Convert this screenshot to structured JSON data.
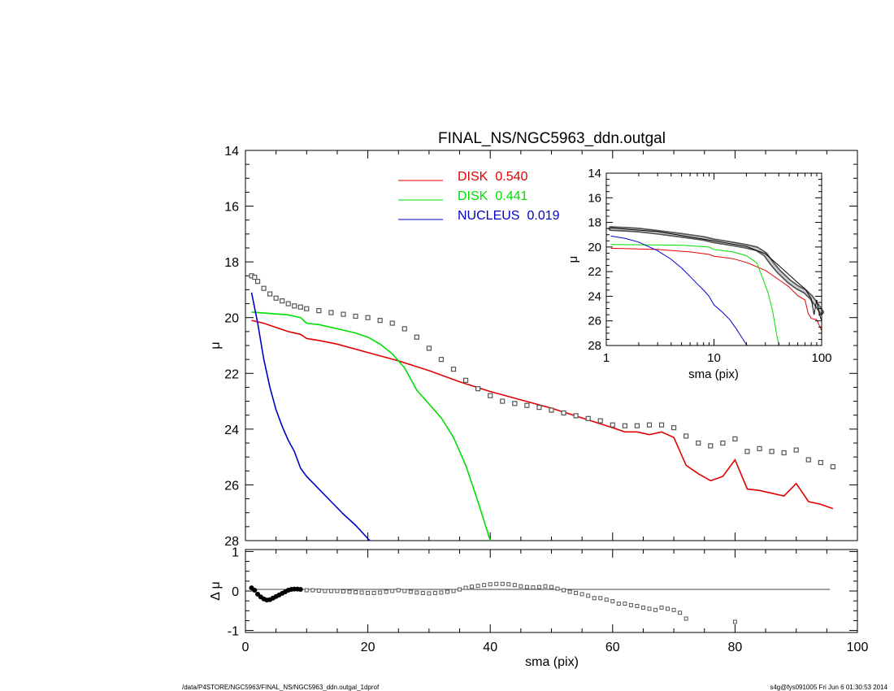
{
  "chart_data": [
    {
      "type": "scatter",
      "title": "FINAL_NS/NGC5963_ddn.outgal",
      "xlabel": "",
      "ylabel": "μ",
      "xlim": [
        0,
        100
      ],
      "ylim": [
        28,
        14
      ],
      "yticks": [
        "14",
        "16",
        "18",
        "20",
        "22",
        "24",
        "26",
        "28"
      ],
      "legend": [
        {
          "name": "DISK",
          "frac": "0.540",
          "color": "#e00000"
        },
        {
          "name": "DISK",
          "frac": "0.441",
          "color": "#00dd00"
        },
        {
          "name": "NUCLEUS",
          "frac": "0.019",
          "color": "#0000c8"
        }
      ],
      "series": [
        {
          "name": "data",
          "style": "squares",
          "color": "#555555",
          "x": [
            1,
            1.5,
            2,
            3,
            4,
            5,
            6,
            7,
            8,
            9,
            10,
            12,
            14,
            16,
            18,
            20,
            22,
            24,
            26,
            28,
            30,
            32,
            34,
            36,
            38,
            40,
            42,
            44,
            46,
            48,
            50,
            52,
            54,
            56,
            58,
            60,
            62,
            64,
            66,
            68,
            70,
            72,
            74,
            76,
            78,
            80,
            82,
            84,
            86,
            88,
            90,
            92,
            94,
            96
          ],
          "y": [
            18.5,
            18.55,
            18.7,
            18.95,
            19.15,
            19.3,
            19.4,
            19.5,
            19.58,
            19.62,
            19.68,
            19.75,
            19.82,
            19.88,
            19.95,
            20.0,
            20.1,
            20.2,
            20.4,
            20.7,
            21.1,
            21.5,
            21.85,
            22.25,
            22.55,
            22.8,
            23.0,
            23.08,
            23.15,
            23.22,
            23.32,
            23.42,
            23.52,
            23.62,
            23.7,
            23.85,
            23.88,
            23.88,
            23.85,
            23.85,
            23.95,
            24.25,
            24.5,
            24.6,
            24.5,
            24.35,
            24.8,
            24.7,
            24.8,
            24.85,
            24.75,
            25.1,
            25.2,
            25.35
          ]
        },
        {
          "name": "DISK",
          "style": "line",
          "color": "#e00000",
          "x": [
            1,
            3,
            5,
            7,
            9,
            10,
            12,
            15,
            20,
            25,
            30,
            35,
            40,
            45,
            50,
            55,
            60,
            62,
            64,
            66,
            68,
            70,
            72,
            74,
            76,
            78,
            80,
            82,
            84,
            86,
            88,
            90,
            92,
            94,
            96
          ],
          "y": [
            20.1,
            20.2,
            20.35,
            20.5,
            20.6,
            20.75,
            20.82,
            20.95,
            21.25,
            21.55,
            21.9,
            22.3,
            22.65,
            22.95,
            23.25,
            23.6,
            23.95,
            24.1,
            24.1,
            24.2,
            24.1,
            24.3,
            25.3,
            25.6,
            25.85,
            25.7,
            25.1,
            26.15,
            26.2,
            26.3,
            26.4,
            25.95,
            26.6,
            26.7,
            26.85
          ]
        },
        {
          "name": "DISK",
          "style": "line",
          "color": "#00dd00",
          "x": [
            1,
            4,
            7,
            9,
            10,
            12,
            15,
            18,
            20,
            22,
            24,
            26,
            28,
            30,
            32,
            34,
            36,
            38,
            40
          ],
          "y": [
            19.8,
            19.85,
            19.9,
            20.0,
            20.2,
            20.25,
            20.4,
            20.55,
            20.7,
            20.95,
            21.3,
            21.8,
            22.6,
            23.1,
            23.6,
            24.3,
            25.3,
            26.6,
            28.0
          ]
        },
        {
          "name": "NUCLEUS",
          "style": "line",
          "color": "#0000c8",
          "x": [
            1,
            2,
            3,
            4,
            5,
            6,
            7,
            8,
            9,
            10,
            12,
            14,
            16,
            18,
            20.3
          ],
          "y": [
            19.1,
            20.2,
            21.5,
            22.5,
            23.3,
            23.9,
            24.4,
            24.8,
            25.4,
            25.7,
            26.15,
            26.6,
            27.05,
            27.45,
            28.0
          ]
        }
      ]
    },
    {
      "type": "line",
      "title": "",
      "xlabel": "sma (pix)",
      "ylabel": "μ",
      "xscale": "log",
      "xlim": [
        1,
        100
      ],
      "ylim": [
        28,
        14
      ],
      "xticks": [
        "1",
        "10",
        "100"
      ],
      "yticks": [
        "14",
        "16",
        "18",
        "20",
        "22",
        "24",
        "26",
        "28"
      ],
      "series": [
        {
          "name": "data",
          "style": "thick",
          "color": "#555555",
          "x": [
            1.1,
            2,
            3,
            5,
            8,
            10,
            15,
            20,
            25,
            30,
            35,
            40,
            50,
            60,
            70,
            80,
            90,
            100
          ],
          "y": [
            18.5,
            18.62,
            18.8,
            19.05,
            19.3,
            19.5,
            19.75,
            19.95,
            20.15,
            20.6,
            21.4,
            22.0,
            22.8,
            23.3,
            23.6,
            24.1,
            24.7,
            25.3
          ]
        },
        {
          "name": "model",
          "style": "thin",
          "color": "#000000",
          "x": [
            1.1,
            3,
            10,
            20,
            30,
            40,
            60,
            70,
            80,
            85,
            90,
            95,
            100
          ],
          "y": [
            18.45,
            18.75,
            19.5,
            19.95,
            20.55,
            21.5,
            22.9,
            23.4,
            24.2,
            25.5,
            24.3,
            25.4,
            26.0
          ]
        },
        {
          "name": "DISK",
          "style": "thin",
          "color": "#e00000",
          "x": [
            1.1,
            3,
            6,
            9,
            10,
            15,
            20,
            30,
            40,
            50,
            60,
            70,
            75,
            80,
            90,
            100
          ],
          "y": [
            20.1,
            20.2,
            20.4,
            20.6,
            20.75,
            20.95,
            21.25,
            21.9,
            22.65,
            23.25,
            23.95,
            24.3,
            25.4,
            25.8,
            25.9,
            26.8
          ]
        },
        {
          "name": "DISK",
          "style": "thin",
          "color": "#00dd00",
          "x": [
            1.1,
            5,
            9,
            10,
            15,
            20,
            25,
            30,
            32,
            35,
            38,
            40
          ],
          "y": [
            19.8,
            19.85,
            20.0,
            20.2,
            20.4,
            20.7,
            21.3,
            23.1,
            23.8,
            25.2,
            27.0,
            28.0
          ]
        },
        {
          "name": "NUCLEUS",
          "style": "thin",
          "color": "#0000c8",
          "x": [
            1.1,
            1.5,
            2,
            3,
            4,
            5,
            6,
            7,
            8,
            9,
            10,
            12,
            14,
            16,
            18,
            20.3
          ],
          "y": [
            19.1,
            19.3,
            19.6,
            20.3,
            21.0,
            21.7,
            22.4,
            23.0,
            23.5,
            24.0,
            24.7,
            25.3,
            25.9,
            26.6,
            27.3,
            28.0
          ]
        }
      ]
    },
    {
      "type": "scatter",
      "title": "",
      "xlabel": "sma (pix)",
      "ylabel": "Δ μ",
      "xlim": [
        0,
        100
      ],
      "ylim": [
        -1,
        1
      ],
      "xticks": [
        "0",
        "20",
        "40",
        "60",
        "80",
        "100"
      ],
      "yticks": [
        "1",
        "0",
        "-1"
      ],
      "series": [
        {
          "name": "residual",
          "style": "squares",
          "color": "#555555",
          "x": [
            1,
            1.5,
            2,
            2.5,
            3,
            3.5,
            4,
            4.5,
            5,
            5.5,
            6,
            6.5,
            7,
            7.5,
            8,
            8.5,
            9,
            10,
            11,
            12,
            13,
            14,
            15,
            16,
            17,
            18,
            19,
            20,
            21,
            22,
            23,
            24,
            25,
            26,
            27,
            28,
            29,
            30,
            31,
            32,
            33,
            34,
            35,
            36,
            37,
            38,
            39,
            40,
            41,
            42,
            43,
            44,
            45,
            46,
            47,
            48,
            49,
            50,
            51,
            52,
            53,
            54,
            55,
            56,
            57,
            58,
            59,
            60,
            61,
            62,
            63,
            64,
            65,
            66,
            67,
            68,
            69,
            70,
            71,
            72,
            80
          ],
          "y": [
            0.08,
            0.02,
            -0.08,
            -0.15,
            -0.2,
            -0.23,
            -0.22,
            -0.18,
            -0.14,
            -0.1,
            -0.06,
            -0.02,
            0.02,
            0.04,
            0.05,
            0.05,
            0.04,
            0.02,
            0.02,
            0.01,
            0.0,
            0.0,
            0.0,
            -0.01,
            -0.02,
            -0.03,
            -0.04,
            -0.05,
            -0.05,
            -0.04,
            -0.02,
            0.0,
            0.02,
            0.0,
            -0.02,
            -0.04,
            -0.05,
            -0.06,
            -0.05,
            -0.04,
            -0.02,
            0.0,
            0.04,
            0.08,
            0.11,
            0.13,
            0.15,
            0.17,
            0.18,
            0.18,
            0.17,
            0.15,
            0.12,
            0.1,
            0.09,
            0.1,
            0.12,
            0.1,
            0.06,
            0.02,
            -0.02,
            -0.05,
            -0.08,
            -0.12,
            -0.18,
            -0.18,
            -0.22,
            -0.26,
            -0.32,
            -0.32,
            -0.36,
            -0.38,
            -0.42,
            -0.45,
            -0.48,
            -0.42,
            -0.45,
            -0.48,
            -0.55,
            -0.7,
            -0.78
          ]
        }
      ]
    }
  ],
  "footer": {
    "left": "/data/P4STORE/NGC5963/FINAL_NS/NGC5963_ddn.outgal_1dprof",
    "right": "s4g@fys091005  Fri Jun  6 01:30:53 2014"
  }
}
